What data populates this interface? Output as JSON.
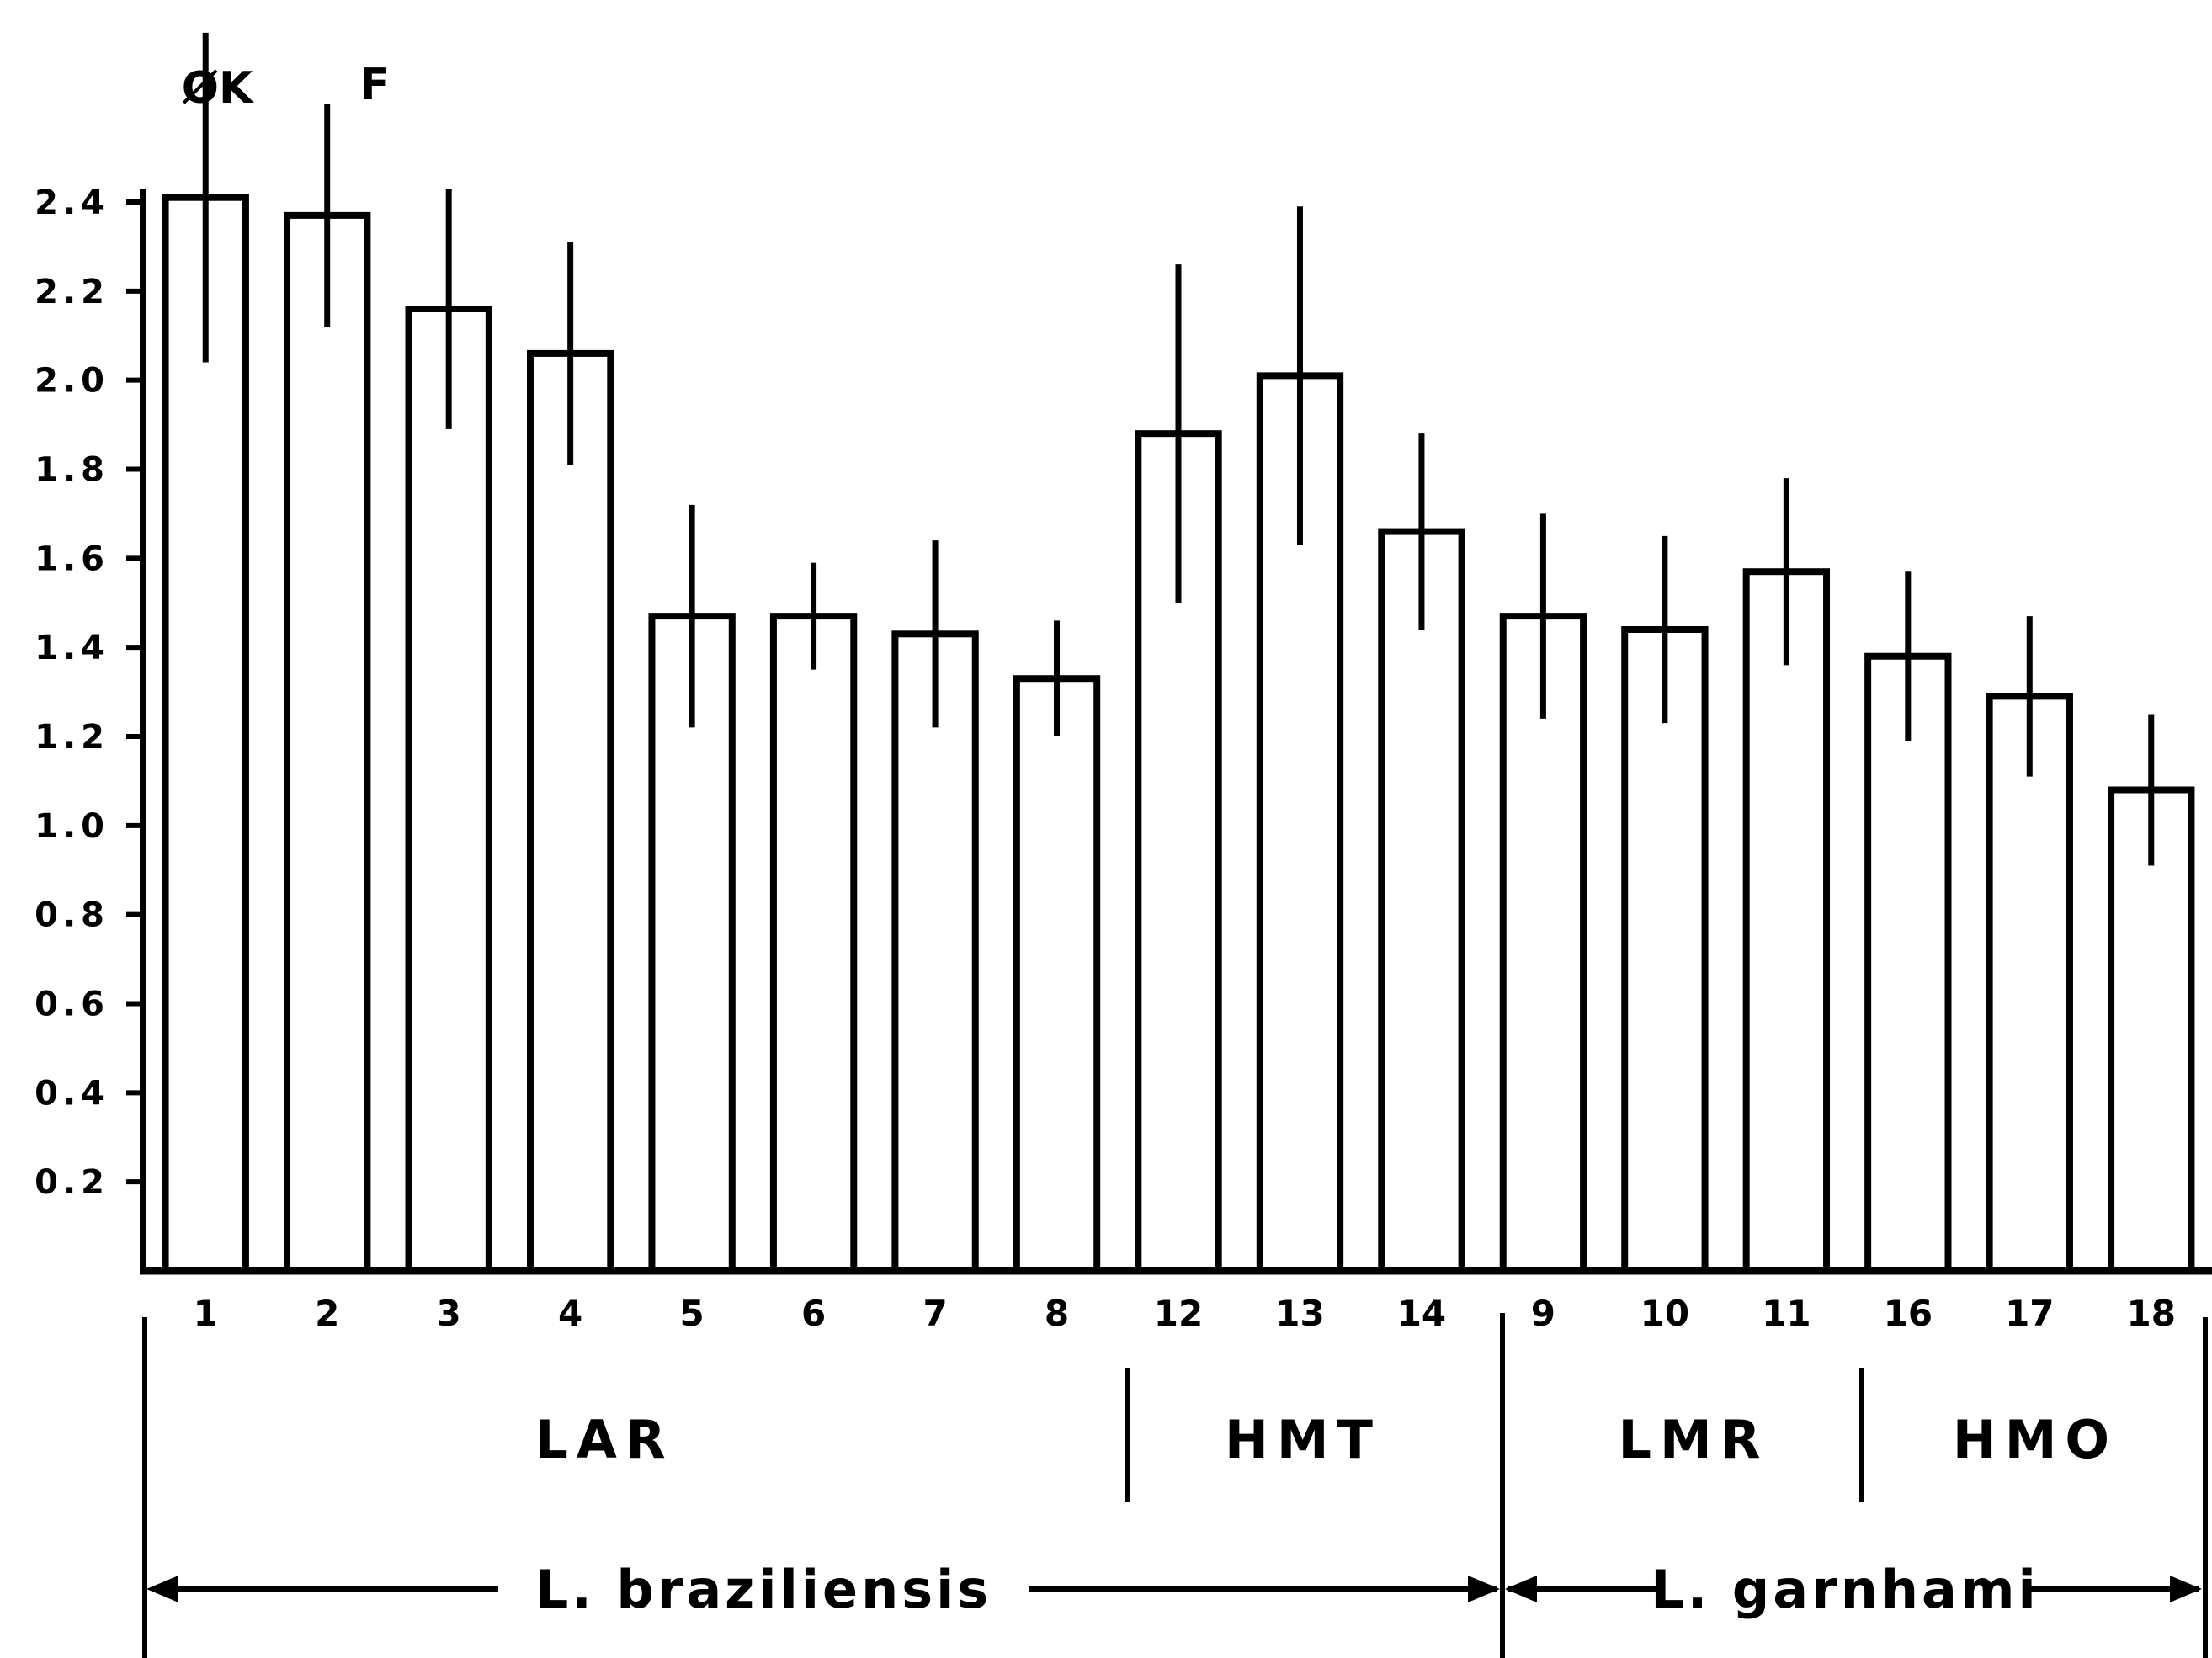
{
  "chart_data": {
    "type": "bar",
    "title": "",
    "xlabel": "",
    "ylabel": "",
    "ylim": [
      0,
      2.4
    ],
    "yticks": [
      "0.2",
      "0.4",
      "0.6",
      "0.8",
      "1.0",
      "1.2",
      "1.4",
      "1.6",
      "1.8",
      "2.0",
      "2.2",
      "2.4"
    ],
    "categories": [
      "1",
      "2",
      "3",
      "4",
      "5",
      "6",
      "7",
      "8",
      "12",
      "13",
      "14",
      "9",
      "10",
      "11",
      "16",
      "17",
      "18"
    ],
    "values": [
      2.41,
      2.37,
      2.16,
      2.06,
      1.47,
      1.47,
      1.43,
      1.33,
      1.88,
      2.01,
      1.66,
      1.47,
      1.44,
      1.57,
      1.38,
      1.29,
      1.08
    ],
    "errors": [
      0.37,
      0.25,
      0.27,
      0.25,
      0.25,
      0.12,
      0.21,
      0.13,
      0.38,
      0.38,
      0.22,
      0.23,
      0.21,
      0.21,
      0.19,
      0.18,
      0.17
    ],
    "annotations": [
      {
        "text": "ØK",
        "bar": "1"
      },
      {
        "text": "F",
        "bar": "2"
      }
    ],
    "groups": [
      {
        "label": "LAR",
        "bars": [
          "1",
          "2",
          "3",
          "4",
          "5",
          "6",
          "7",
          "8"
        ]
      },
      {
        "label": "HMT",
        "bars": [
          "12",
          "13",
          "14"
        ]
      },
      {
        "label": "LMR",
        "bars": [
          "9",
          "10",
          "11"
        ]
      },
      {
        "label": "HMO",
        "bars": [
          "16",
          "17",
          "18"
        ]
      }
    ],
    "species": [
      {
        "label": "L. braziliensis",
        "groups": [
          "LAR",
          "HMT"
        ]
      },
      {
        "label": "L. garnhami",
        "groups": [
          "LMR",
          "HMO"
        ]
      }
    ],
    "grid": false,
    "legend": "none"
  }
}
